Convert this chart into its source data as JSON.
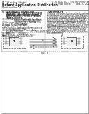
{
  "background_color": "#ffffff",
  "text_color": "#222222",
  "gray": "#999999",
  "dark": "#333333",
  "light": "#cccccc",
  "header_bg": "#f0f0f0",
  "fig_width": 1.28,
  "fig_height": 1.65,
  "dpi": 100
}
